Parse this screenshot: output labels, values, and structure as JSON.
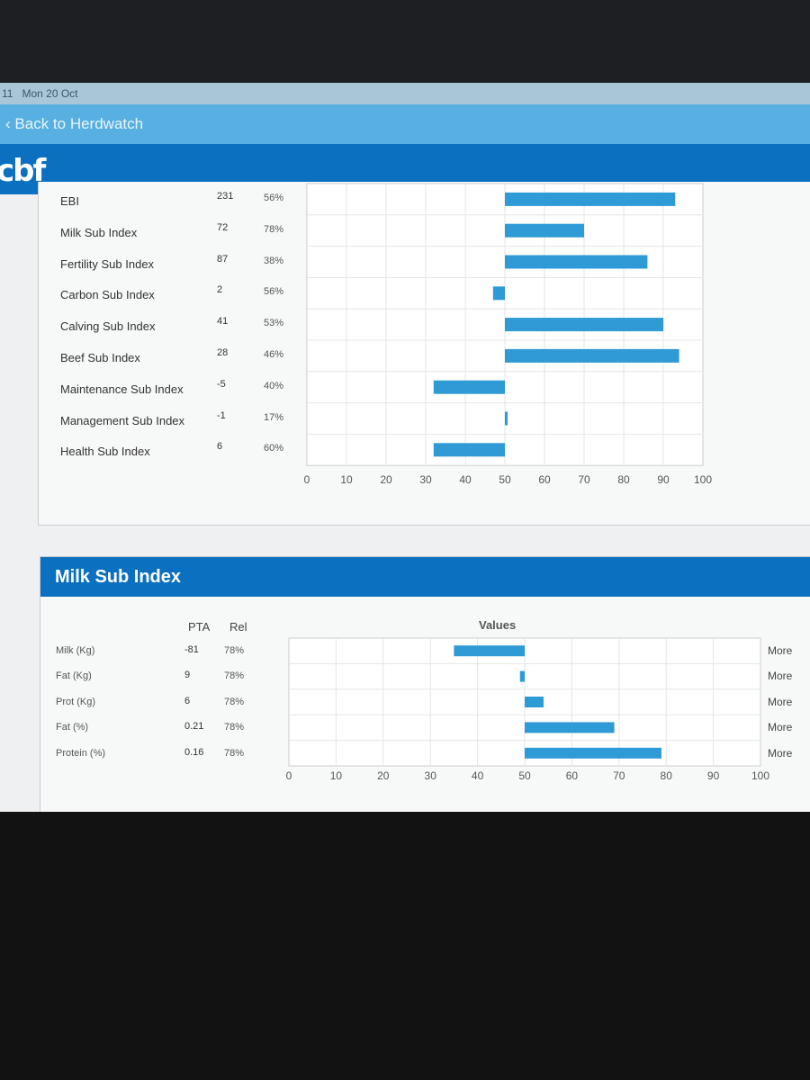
{
  "status": {
    "time": "11",
    "date": "Mon 20 Oct"
  },
  "nav": {
    "back_label": "Back to Herdwatch"
  },
  "brand": {
    "logo": "cbf"
  },
  "ebi_chart": {
    "rows": [
      {
        "label": "EBI",
        "value": "231",
        "rel": "56%"
      },
      {
        "label": "Milk Sub Index",
        "value": "72",
        "rel": "78%"
      },
      {
        "label": "Fertility Sub Index",
        "value": "87",
        "rel": "38%"
      },
      {
        "label": "Carbon Sub Index",
        "value": "2",
        "rel": "56%"
      },
      {
        "label": "Calving Sub Index",
        "value": "41",
        "rel": "53%"
      },
      {
        "label": "Beef Sub Index",
        "value": "28",
        "rel": "46%"
      },
      {
        "label": "Maintenance Sub Index",
        "value": "-5",
        "rel": "40%"
      },
      {
        "label": "Management Sub Index",
        "value": "-1",
        "rel": "17%"
      },
      {
        "label": "Health Sub Index",
        "value": "6",
        "rel": "60%"
      }
    ],
    "ticks": [
      "0",
      "10",
      "20",
      "30",
      "40",
      "50",
      "60",
      "70",
      "80",
      "90",
      "100"
    ]
  },
  "milk_section": {
    "title": "Milk Sub Index",
    "col_pta": "PTA",
    "col_rel": "Rel",
    "values_title": "Values",
    "more_label": "More",
    "rows": [
      {
        "label": "Milk (Kg)",
        "pta": "-81",
        "rel": "78%"
      },
      {
        "label": "Fat (Kg)",
        "pta": "9",
        "rel": "78%"
      },
      {
        "label": "Prot (Kg)",
        "pta": "6",
        "rel": "78%"
      },
      {
        "label": "Fat (%)",
        "pta": "0.21",
        "rel": "78%"
      },
      {
        "label": "Protein (%)",
        "pta": "0.16",
        "rel": "78%"
      }
    ],
    "ticks": [
      "0",
      "10",
      "20",
      "30",
      "40",
      "50",
      "60",
      "70",
      "80",
      "90",
      "100"
    ]
  },
  "chart_data": [
    {
      "type": "bar",
      "orientation": "horizontal",
      "categories": [
        "EBI",
        "Milk Sub Index",
        "Fertility Sub Index",
        "Carbon Sub Index",
        "Calving Sub Index",
        "Beef Sub Index",
        "Maintenance Sub Index",
        "Management Sub Index",
        "Health Sub Index"
      ],
      "baseline": 50,
      "bar_ends": [
        93,
        70,
        86,
        47,
        90,
        94,
        32,
        50,
        32
      ],
      "xlim": [
        0,
        100
      ],
      "grid": true,
      "bar_color": "#2e9ad6"
    },
    {
      "type": "bar",
      "orientation": "horizontal",
      "categories": [
        "Milk (Kg)",
        "Fat (Kg)",
        "Prot (Kg)",
        "Fat (%)",
        "Protein (%)"
      ],
      "baseline": 50,
      "bar_ends": [
        35,
        49,
        54,
        69,
        79
      ],
      "xlim": [
        0,
        100
      ],
      "grid": true,
      "bar_color": "#2e9ad6"
    }
  ]
}
